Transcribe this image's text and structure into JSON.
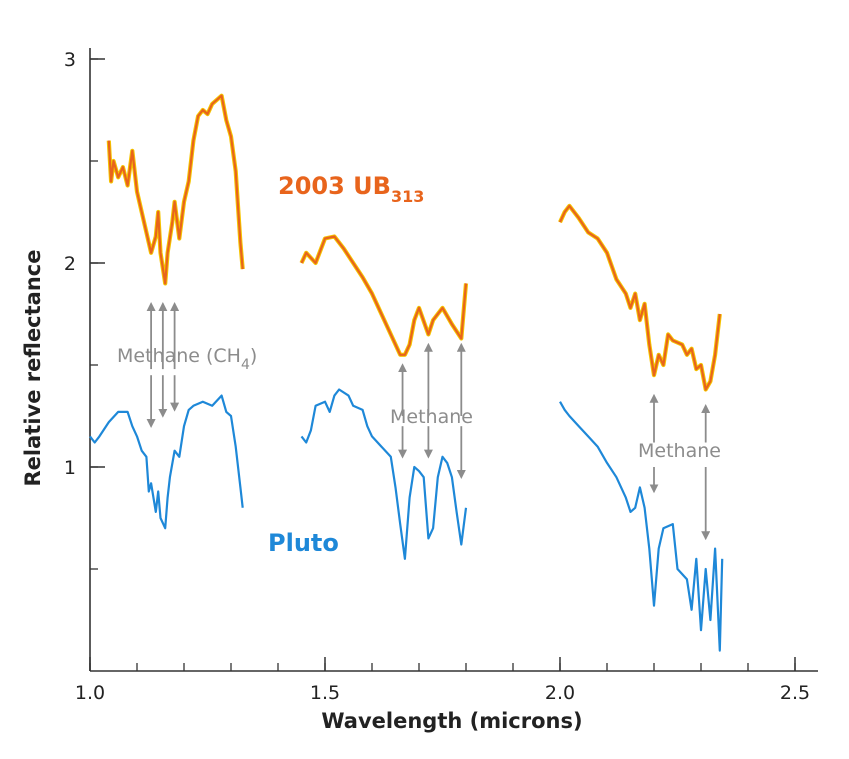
{
  "chart_data": {
    "type": "line",
    "title": "",
    "xlabel": "Wavelength (microns)",
    "ylabel": "Relative reflectance",
    "xlim": [
      1.0,
      2.55
    ],
    "ylim": [
      0,
      3.05
    ],
    "grid": false,
    "x_ticks": [
      1.0,
      1.5,
      2.0,
      2.5
    ],
    "x_tick_labels": [
      "1.0",
      "1.5",
      "2.0",
      "2.5"
    ],
    "y_ticks": [
      1,
      2,
      3
    ],
    "y_tick_labels": [
      "1",
      "2",
      "3"
    ],
    "series": [
      {
        "name_main": "2003 UB",
        "name_sub": "313",
        "color": "#e8641c",
        "highlight": "#f5c400",
        "segments": [
          [
            [
              1.04,
              2.6
            ],
            [
              1.045,
              2.4
            ],
            [
              1.05,
              2.5
            ],
            [
              1.06,
              2.42
            ],
            [
              1.07,
              2.47
            ],
            [
              1.08,
              2.38
            ],
            [
              1.09,
              2.55
            ],
            [
              1.1,
              2.35
            ],
            [
              1.11,
              2.25
            ],
            [
              1.12,
              2.15
            ],
            [
              1.13,
              2.05
            ],
            [
              1.14,
              2.13
            ],
            [
              1.145,
              2.25
            ],
            [
              1.15,
              2.05
            ],
            [
              1.16,
              1.9
            ],
            [
              1.165,
              2.05
            ],
            [
              1.175,
              2.2
            ],
            [
              1.18,
              2.3
            ],
            [
              1.19,
              2.12
            ],
            [
              1.2,
              2.3
            ],
            [
              1.21,
              2.4
            ],
            [
              1.22,
              2.6
            ],
            [
              1.23,
              2.72
            ],
            [
              1.24,
              2.75
            ],
            [
              1.25,
              2.73
            ],
            [
              1.26,
              2.78
            ],
            [
              1.27,
              2.8
            ],
            [
              1.28,
              2.82
            ],
            [
              1.29,
              2.7
            ],
            [
              1.3,
              2.62
            ],
            [
              1.31,
              2.45
            ],
            [
              1.32,
              2.1
            ],
            [
              1.325,
              1.97
            ]
          ],
          [
            [
              1.45,
              2.0
            ],
            [
              1.46,
              2.05
            ],
            [
              1.48,
              2.0
            ],
            [
              1.5,
              2.12
            ],
            [
              1.52,
              2.13
            ],
            [
              1.54,
              2.07
            ],
            [
              1.56,
              2.0
            ],
            [
              1.58,
              1.93
            ],
            [
              1.6,
              1.85
            ],
            [
              1.62,
              1.75
            ],
            [
              1.64,
              1.65
            ],
            [
              1.66,
              1.55
            ],
            [
              1.67,
              1.55
            ],
            [
              1.68,
              1.6
            ],
            [
              1.69,
              1.72
            ],
            [
              1.7,
              1.78
            ],
            [
              1.72,
              1.65
            ],
            [
              1.73,
              1.72
            ],
            [
              1.75,
              1.78
            ],
            [
              1.77,
              1.7
            ],
            [
              1.79,
              1.63
            ],
            [
              1.8,
              1.9
            ]
          ],
          [
            [
              2.0,
              2.2
            ],
            [
              2.01,
              2.25
            ],
            [
              2.02,
              2.28
            ],
            [
              2.04,
              2.22
            ],
            [
              2.06,
              2.15
            ],
            [
              2.08,
              2.12
            ],
            [
              2.1,
              2.05
            ],
            [
              2.12,
              1.92
            ],
            [
              2.14,
              1.85
            ],
            [
              2.15,
              1.78
            ],
            [
              2.16,
              1.85
            ],
            [
              2.17,
              1.72
            ],
            [
              2.18,
              1.8
            ],
            [
              2.19,
              1.6
            ],
            [
              2.2,
              1.45
            ],
            [
              2.21,
              1.55
            ],
            [
              2.22,
              1.5
            ],
            [
              2.23,
              1.65
            ],
            [
              2.24,
              1.62
            ],
            [
              2.26,
              1.6
            ],
            [
              2.27,
              1.55
            ],
            [
              2.28,
              1.58
            ],
            [
              2.29,
              1.48
            ],
            [
              2.3,
              1.5
            ],
            [
              2.31,
              1.38
            ],
            [
              2.32,
              1.42
            ],
            [
              2.33,
              1.55
            ],
            [
              2.34,
              1.75
            ]
          ]
        ]
      },
      {
        "name": "Pluto",
        "color": "#1e88d8",
        "segments": [
          [
            [
              1.0,
              1.15
            ],
            [
              1.01,
              1.12
            ],
            [
              1.02,
              1.15
            ],
            [
              1.04,
              1.22
            ],
            [
              1.06,
              1.27
            ],
            [
              1.08,
              1.27
            ],
            [
              1.09,
              1.2
            ],
            [
              1.1,
              1.15
            ],
            [
              1.11,
              1.08
            ],
            [
              1.12,
              1.05
            ],
            [
              1.125,
              0.88
            ],
            [
              1.13,
              0.92
            ],
            [
              1.14,
              0.78
            ],
            [
              1.145,
              0.88
            ],
            [
              1.15,
              0.75
            ],
            [
              1.16,
              0.7
            ],
            [
              1.165,
              0.85
            ],
            [
              1.17,
              0.95
            ],
            [
              1.18,
              1.08
            ],
            [
              1.19,
              1.05
            ],
            [
              1.2,
              1.2
            ],
            [
              1.21,
              1.28
            ],
            [
              1.22,
              1.3
            ],
            [
              1.24,
              1.32
            ],
            [
              1.26,
              1.3
            ],
            [
              1.28,
              1.35
            ],
            [
              1.29,
              1.27
            ],
            [
              1.3,
              1.25
            ],
            [
              1.31,
              1.1
            ],
            [
              1.32,
              0.9
            ],
            [
              1.325,
              0.8
            ]
          ],
          [
            [
              1.45,
              1.15
            ],
            [
              1.46,
              1.12
            ],
            [
              1.47,
              1.18
            ],
            [
              1.48,
              1.3
            ],
            [
              1.5,
              1.32
            ],
            [
              1.51,
              1.27
            ],
            [
              1.52,
              1.35
            ],
            [
              1.53,
              1.38
            ],
            [
              1.55,
              1.35
            ],
            [
              1.56,
              1.3
            ],
            [
              1.58,
              1.28
            ],
            [
              1.59,
              1.2
            ],
            [
              1.6,
              1.15
            ],
            [
              1.62,
              1.1
            ],
            [
              1.64,
              1.05
            ],
            [
              1.65,
              0.9
            ],
            [
              1.66,
              0.72
            ],
            [
              1.67,
              0.55
            ],
            [
              1.68,
              0.85
            ],
            [
              1.69,
              1.0
            ],
            [
              1.7,
              0.98
            ],
            [
              1.71,
              0.95
            ],
            [
              1.72,
              0.65
            ],
            [
              1.73,
              0.7
            ],
            [
              1.74,
              0.95
            ],
            [
              1.75,
              1.05
            ],
            [
              1.76,
              1.02
            ],
            [
              1.77,
              0.95
            ],
            [
              1.78,
              0.78
            ],
            [
              1.79,
              0.62
            ],
            [
              1.8,
              0.8
            ]
          ],
          [
            [
              2.0,
              1.32
            ],
            [
              2.01,
              1.28
            ],
            [
              2.02,
              1.25
            ],
            [
              2.04,
              1.2
            ],
            [
              2.06,
              1.15
            ],
            [
              2.08,
              1.1
            ],
            [
              2.1,
              1.02
            ],
            [
              2.12,
              0.95
            ],
            [
              2.14,
              0.85
            ],
            [
              2.15,
              0.78
            ],
            [
              2.16,
              0.8
            ],
            [
              2.17,
              0.9
            ],
            [
              2.18,
              0.8
            ],
            [
              2.19,
              0.6
            ],
            [
              2.2,
              0.32
            ],
            [
              2.21,
              0.6
            ],
            [
              2.22,
              0.7
            ],
            [
              2.24,
              0.72
            ],
            [
              2.25,
              0.5
            ],
            [
              2.27,
              0.45
            ],
            [
              2.28,
              0.3
            ],
            [
              2.29,
              0.55
            ],
            [
              2.3,
              0.2
            ],
            [
              2.31,
              0.5
            ],
            [
              2.32,
              0.25
            ],
            [
              2.33,
              0.6
            ],
            [
              2.34,
              0.1
            ],
            [
              2.345,
              0.55
            ]
          ]
        ]
      }
    ],
    "annotations": [
      {
        "text": "Methane (CH",
        "sub": "4",
        "suffix": ")",
        "arrows": [
          {
            "x": 1.13,
            "up_from": 1.48,
            "up_to": 1.8,
            "down_from": 1.45,
            "down_to": 1.2
          },
          {
            "x": 1.155,
            "up_from": 1.48,
            "up_to": 1.8,
            "down_from": 1.45,
            "down_to": 1.25
          },
          {
            "x": 1.18,
            "up_from": 1.48,
            "up_to": 1.8,
            "down_from": 1.45,
            "down_to": 1.28
          }
        ]
      },
      {
        "text": "Methane",
        "arrows": [
          {
            "x": 1.665,
            "up_from": 1.25,
            "up_to": 1.5,
            "down_from": 1.2,
            "down_to": 1.05
          },
          {
            "x": 1.72,
            "up_from": 1.25,
            "up_to": 1.6,
            "down_from": 1.2,
            "down_to": 1.05
          },
          {
            "x": 1.79,
            "up_from": 1.25,
            "up_to": 1.6,
            "down_from": 1.2,
            "down_to": 0.95
          }
        ]
      },
      {
        "text": "Methane",
        "arrows": [
          {
            "x": 2.2,
            "up_from": 1.12,
            "up_to": 1.35,
            "down_from": 1.0,
            "down_to": 0.88
          },
          {
            "x": 2.31,
            "up_from": 1.12,
            "up_to": 1.3,
            "down_from": 1.0,
            "down_to": 0.65
          }
        ]
      }
    ]
  }
}
